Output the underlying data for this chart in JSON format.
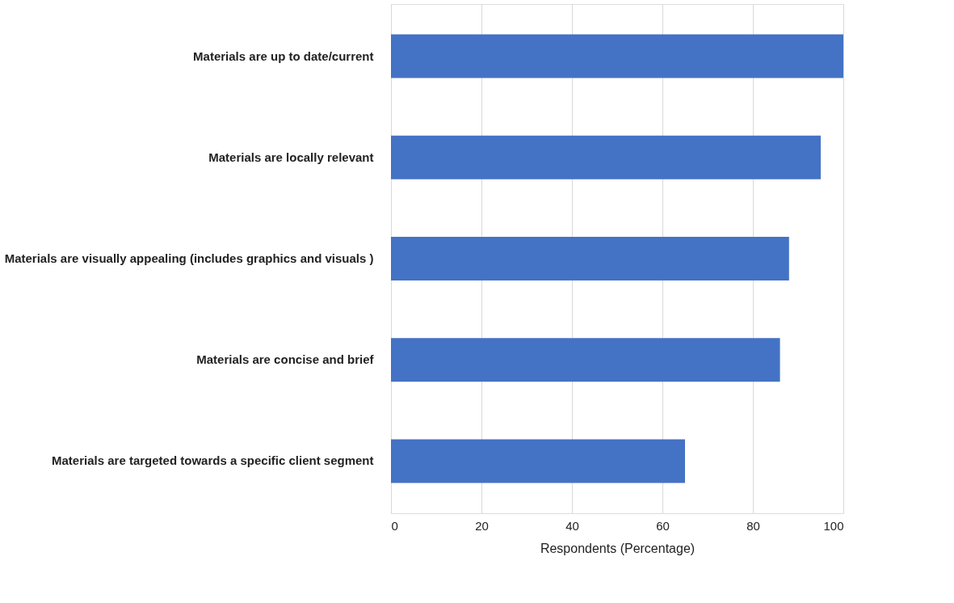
{
  "chart_data": {
    "type": "bar",
    "orientation": "horizontal",
    "xlabel": "Respondents (Percentage)",
    "categories": [
      "Materials are up to date/current",
      "Materials are locally relevant",
      "Materials are visually appealing (includes graphics and visuals )",
      "Materials are concise and brief",
      "Materials are targeted towards a specific client segment"
    ],
    "values": [
      100,
      95,
      88,
      86,
      65
    ],
    "color": "#4472c4",
    "xlim": [
      0,
      100
    ],
    "xticks": [
      0,
      20,
      40,
      60,
      80,
      100
    ],
    "grid": "x"
  }
}
